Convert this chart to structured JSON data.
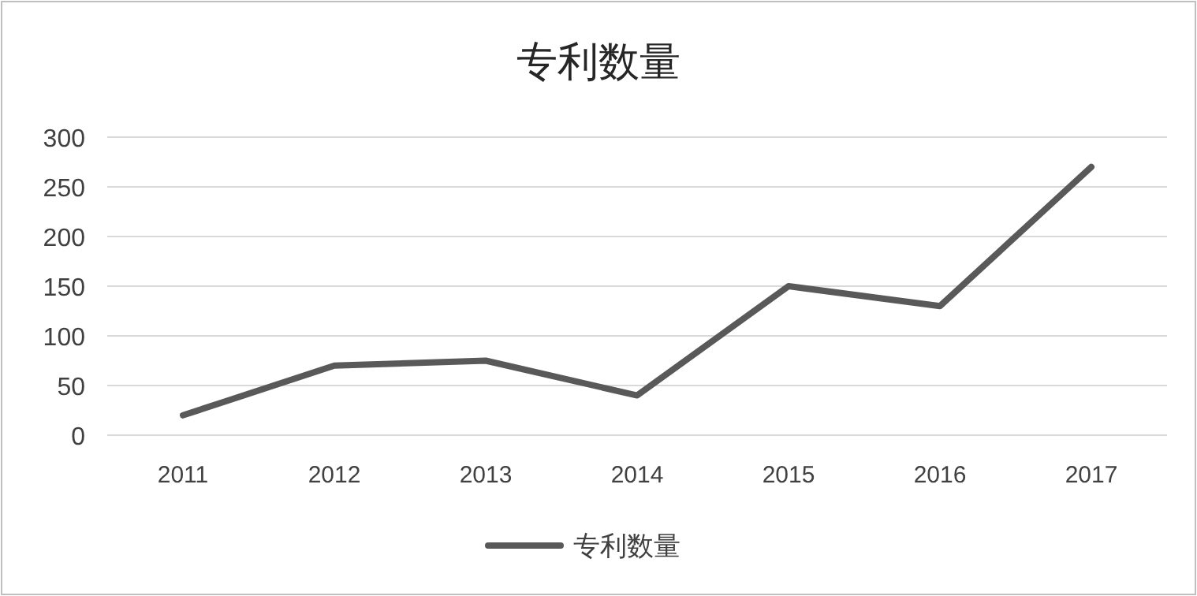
{
  "chart_data": {
    "type": "line",
    "title": "专利数量",
    "categories": [
      "2011",
      "2012",
      "2013",
      "2014",
      "2015",
      "2016",
      "2017"
    ],
    "series": [
      {
        "name": "专利数量",
        "color": "#595959",
        "values": [
          20,
          70,
          75,
          40,
          150,
          130,
          270
        ]
      }
    ],
    "ylim": [
      0,
      300
    ],
    "yticks": [
      0,
      50,
      100,
      150,
      200,
      250,
      300
    ],
    "grid": "y",
    "legend": "bottom",
    "marker": "none",
    "line_style": "solid"
  }
}
